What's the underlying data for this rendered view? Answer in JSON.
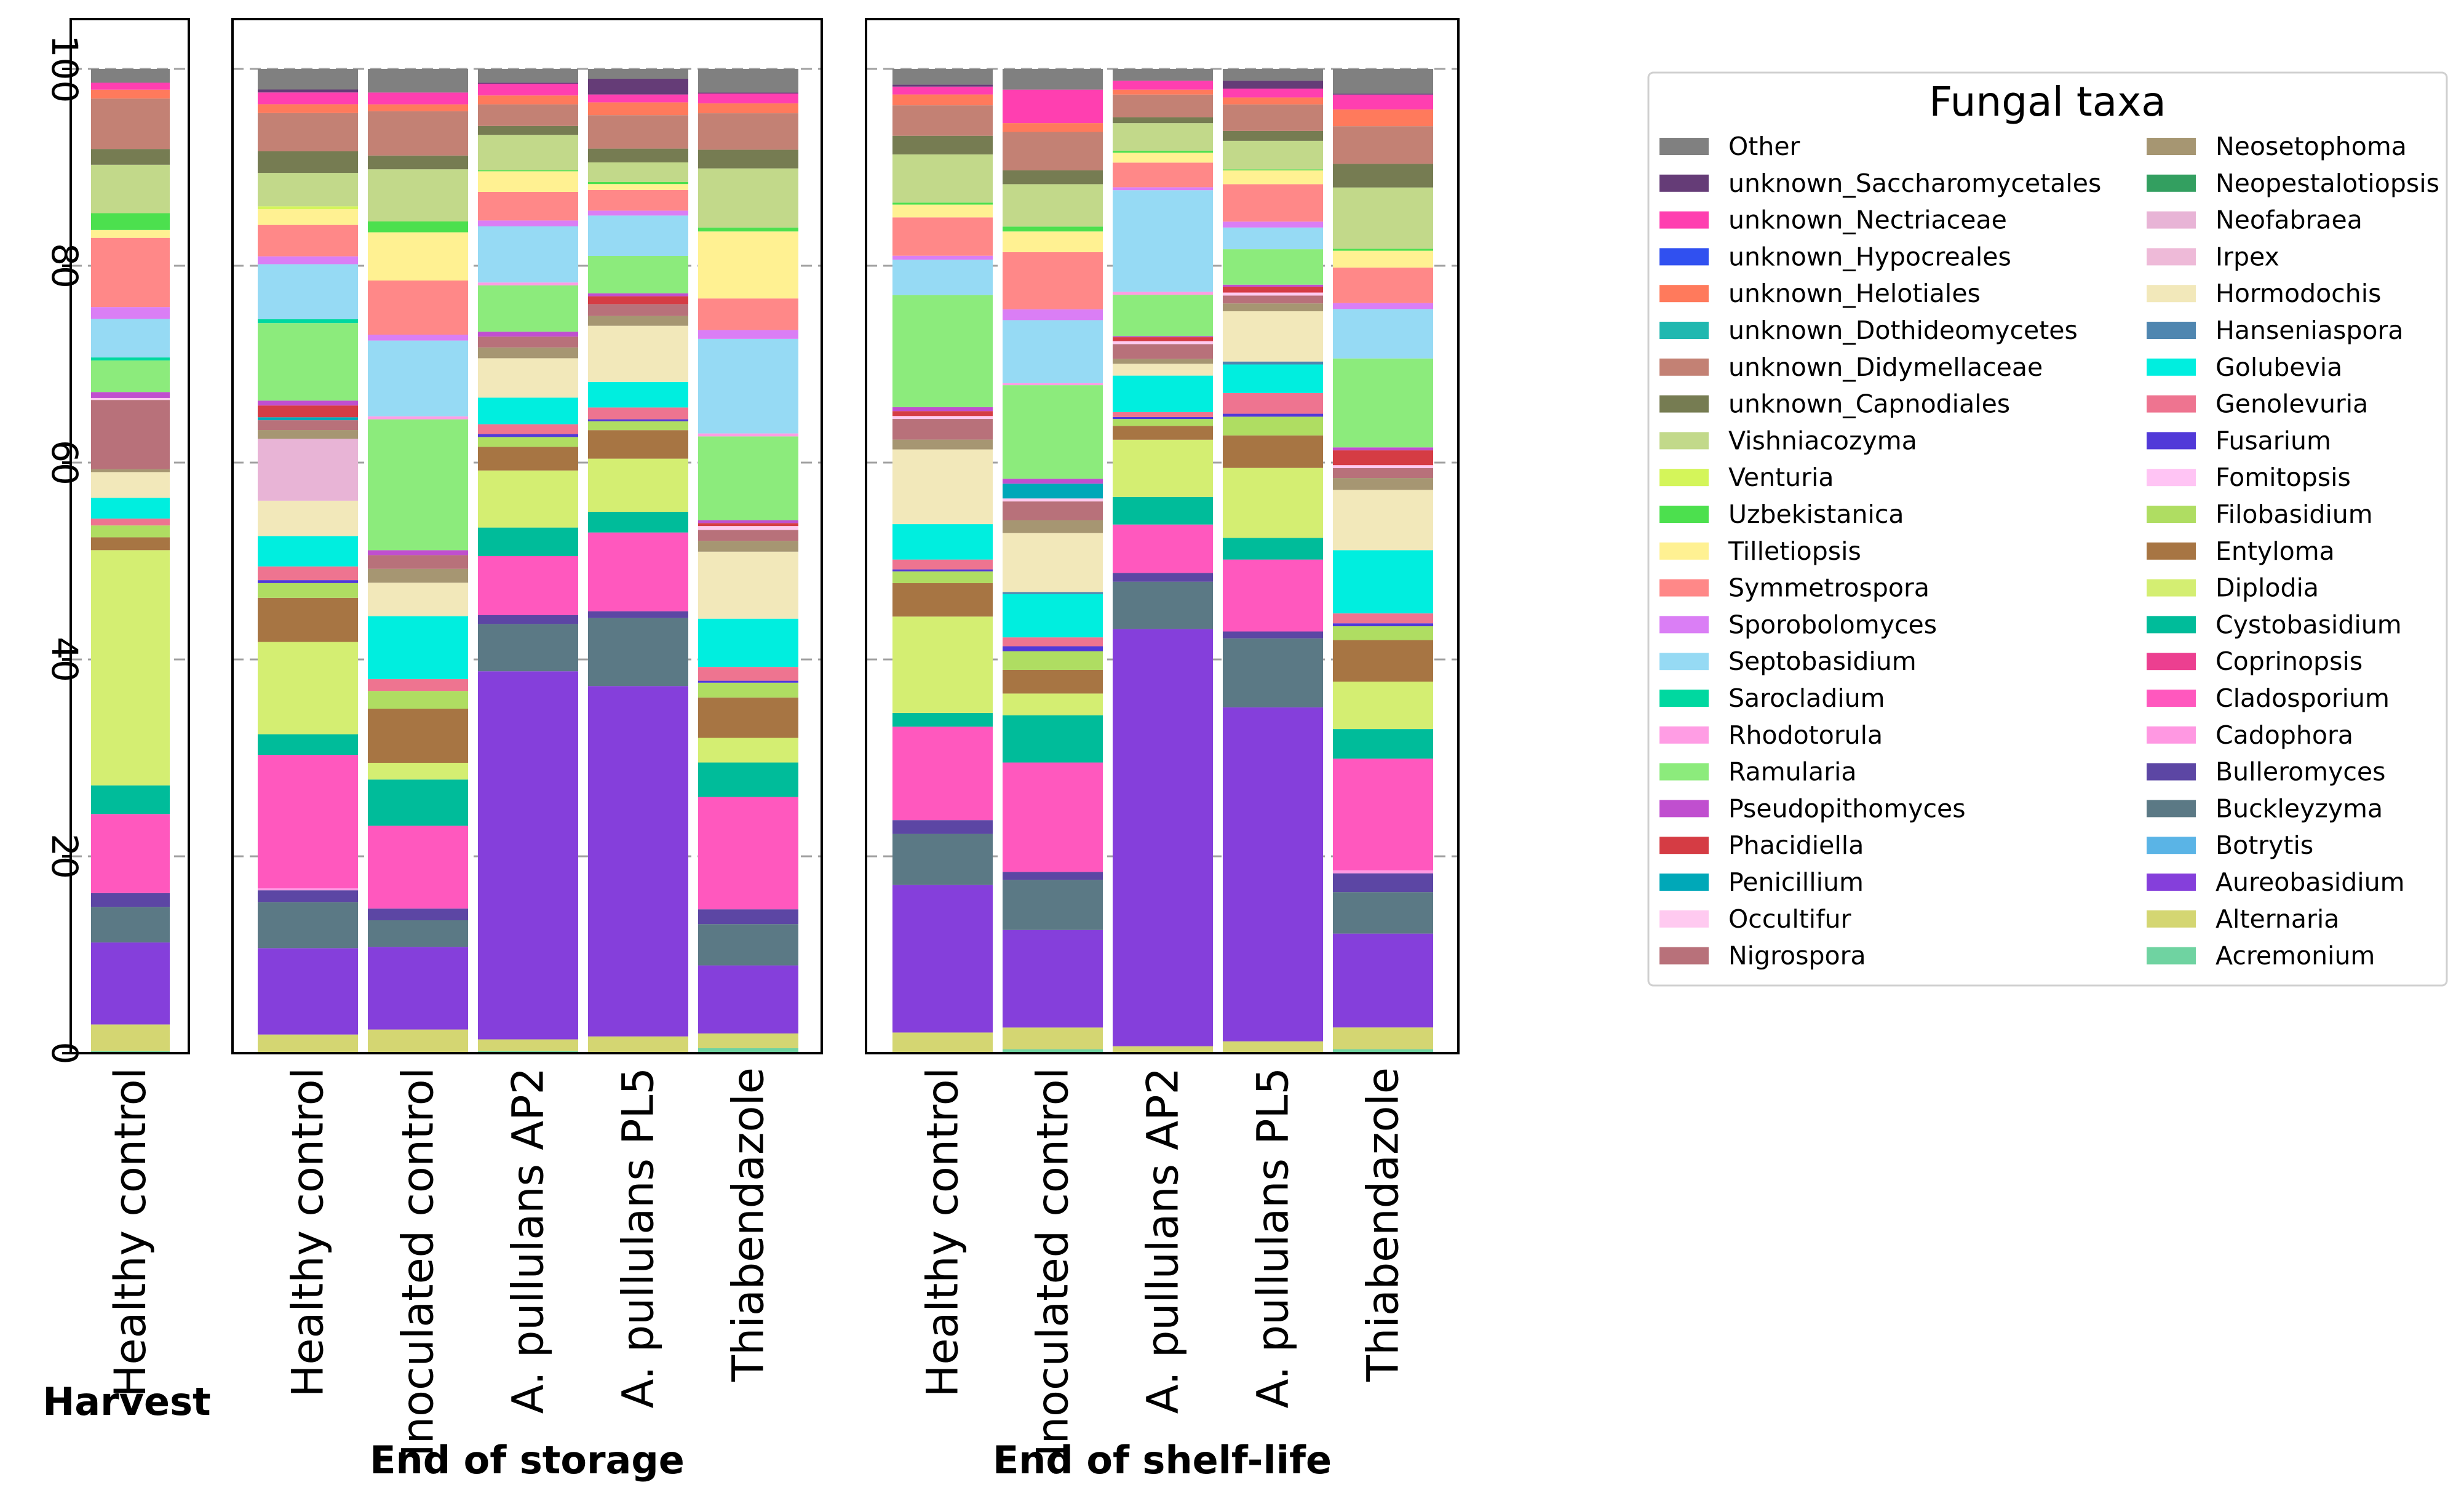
{
  "chart_data": {
    "type": "bar",
    "stacked": true,
    "ylim": [
      0,
      100
    ],
    "yticks": [
      "0",
      "20",
      "40",
      "60",
      "80",
      "100"
    ],
    "grid": true,
    "legend": {
      "title": "Fungal taxa",
      "placement": "right"
    },
    "taxa": [
      {
        "name": "Other",
        "color": "#808080"
      },
      {
        "name": "unknown_Saccharomycetales",
        "color": "#653c77"
      },
      {
        "name": "unknown_Nectriaceae",
        "color": "#ff3fb0"
      },
      {
        "name": "unknown_Hypocreales",
        "color": "#3050f0"
      },
      {
        "name": "unknown_Helotiales",
        "color": "#ff7a5c"
      },
      {
        "name": "unknown_Dothideomycetes",
        "color": "#20b8b0"
      },
      {
        "name": "unknown_Didymellaceae",
        "color": "#c38174"
      },
      {
        "name": "unknown_Capnodiales",
        "color": "#767c52"
      },
      {
        "name": "Vishniacozyma",
        "color": "#c2d98a"
      },
      {
        "name": "Venturia",
        "color": "#d4f55a"
      },
      {
        "name": "Uzbekistanica",
        "color": "#4ce04e"
      },
      {
        "name": "Tilletiopsis",
        "color": "#fff192"
      },
      {
        "name": "Symmetrospora",
        "color": "#ff8888"
      },
      {
        "name": "Sporobolomyces",
        "color": "#da7ef5"
      },
      {
        "name": "Septobasidium",
        "color": "#96daf4"
      },
      {
        "name": "Sarocladium",
        "color": "#00d8a0"
      },
      {
        "name": "Rhodotorula",
        "color": "#ff9de4"
      },
      {
        "name": "Ramularia",
        "color": "#8ceb7c"
      },
      {
        "name": "Pseudopithomyces",
        "color": "#c04fcf"
      },
      {
        "name": "Phacidiella",
        "color": "#d53c44"
      },
      {
        "name": "Penicillium",
        "color": "#00a8b8"
      },
      {
        "name": "Occultifur",
        "color": "#ffcaf0"
      },
      {
        "name": "Nigrospora",
        "color": "#b8717a"
      },
      {
        "name": "Neosetophoma",
        "color": "#a69672"
      },
      {
        "name": "Neopestalotiopsis",
        "color": "#339f60"
      },
      {
        "name": "Neofabraea",
        "color": "#e8b4d6"
      },
      {
        "name": "Irpex",
        "color": "#eebad8"
      },
      {
        "name": "Hormodochis",
        "color": "#f2e8ba"
      },
      {
        "name": "Hanseniaspora",
        "color": "#4f86b0"
      },
      {
        "name": "Golubevia",
        "color": "#00eedf"
      },
      {
        "name": "Genolevuria",
        "color": "#ee7490"
      },
      {
        "name": "Fusarium",
        "color": "#5139d8"
      },
      {
        "name": "Fomitopsis",
        "color": "#ffc4f4"
      },
      {
        "name": "Filobasidium",
        "color": "#afdd62"
      },
      {
        "name": "Entyloma",
        "color": "#a77543"
      },
      {
        "name": "Diplodia",
        "color": "#d4ee72"
      },
      {
        "name": "Cystobasidium",
        "color": "#00bc9a"
      },
      {
        "name": "Coprinopsis",
        "color": "#ec3f90"
      },
      {
        "name": "Cladosporium",
        "color": "#ff58be"
      },
      {
        "name": "Cadophora",
        "color": "#ff98e2"
      },
      {
        "name": "Bulleromyces",
        "color": "#5c46a4"
      },
      {
        "name": "Buckleyzyma",
        "color": "#5b7985"
      },
      {
        "name": "Botrytis",
        "color": "#5ab4e6"
      },
      {
        "name": "Aureobasidium",
        "color": "#853fdb"
      },
      {
        "name": "Alternaria",
        "color": "#d4d672"
      },
      {
        "name": "Acremonium",
        "color": "#6fd3a1"
      }
    ],
    "groups": [
      {
        "label": "Harvest",
        "bars": [
          {
            "label": "Healthy control",
            "values": {
              "Acremonium": 0.2,
              "Alternaria": 2.7,
              "Aureobasidium": 8.3,
              "Buckleyzyma": 3.6,
              "Bulleromyces": 1.4,
              "Cladosporium": 8.0,
              "Cystobasidium": 2.9,
              "Diplodia": 23.8,
              "Entyloma": 1.3,
              "Filobasidium": 1.2,
              "Genolevuria": 0.7,
              "Golubevia": 2.1,
              "Hormodochis": 2.6,
              "Neosetophoma": 0.3,
              "Nigrospora": 7.0,
              "Occultifur": 0.2,
              "Pseudopithomyces": 0.6,
              "Ramularia": 3.2,
              "Sarocladium": 0.3,
              "Septobasidium": 3.9,
              "Sporobolomyces": 1.2,
              "Symmetrospora": 7.0,
              "Tilletiopsis": 0.8,
              "Uzbekistanica": 1.7,
              "Vishniacozyma": 4.9,
              "unknown_Capnodiales": 1.6,
              "unknown_Didymellaceae": 5.1,
              "unknown_Helotiales": 0.9,
              "unknown_Nectriaceae": 0.7,
              "Other": 1.4
            }
          }
        ]
      },
      {
        "label": "End of storage",
        "bars": [
          {
            "label": "Healthy control",
            "values": {
              "Alternaria": 1.9,
              "Aureobasidium": 8.8,
              "Buckleyzyma": 4.7,
              "Bulleromyces": 1.2,
              "Cadophora": 0.2,
              "Cladosporium": 13.6,
              "Cystobasidium": 2.1,
              "Diplodia": 9.4,
              "Entyloma": 4.5,
              "Filobasidium": 1.5,
              "Fusarium": 0.3,
              "Genolevuria": 1.4,
              "Golubevia": 3.1,
              "Hormodochis": 3.6,
              "Neofabraea": 6.3,
              "Neosetophoma": 0.9,
              "Nigrospora": 1.0,
              "Penicillium": 0.3,
              "Phacidiella": 1.2,
              "Pseudopithomyces": 0.5,
              "Ramularia": 7.9,
              "Sarocladium": 0.4,
              "Septobasidium": 5.6,
              "Sporobolomyces": 0.8,
              "Symmetrospora": 3.2,
              "Tilletiopsis": 1.6,
              "Venturia": 0.3,
              "Vishniacozyma": 3.4,
              "unknown_Capnodiales": 2.2,
              "unknown_Didymellaceae": 3.9,
              "unknown_Helotiales": 0.9,
              "unknown_Nectriaceae": 1.2,
              "unknown_Saccharomycetales": 0.3,
              "Other": 2.1
            }
          },
          {
            "label": "Inoculated control",
            "values": {
              "Alternaria": 2.4,
              "Aureobasidium": 8.4,
              "Buckleyzyma": 2.7,
              "Bulleromyces": 1.2,
              "Cladosporium": 8.4,
              "Cystobasidium": 4.7,
              "Diplodia": 1.7,
              "Entyloma": 5.5,
              "Filobasidium": 1.8,
              "Genolevuria": 1.2,
              "Golubevia": 6.4,
              "Hormodochis": 3.4,
              "Neosetophoma": 1.4,
              "Nigrospora": 1.4,
              "Pseudopithomyces": 0.5,
              "Ramularia": 13.3,
              "Rhodotorula": 0.3,
              "Septobasidium": 7.7,
              "Sporobolomyces": 0.6,
              "Symmetrospora": 5.5,
              "Tilletiopsis": 4.9,
              "Uzbekistanica": 1.1,
              "Vishniacozyma": 5.3,
              "unknown_Capnodiales": 1.4,
              "unknown_Didymellaceae": 4.5,
              "unknown_Helotiales": 0.7,
              "unknown_Nectriaceae": 1.2,
              "Other": 2.4
            }
          },
          {
            "label": "A. pullulans AP2",
            "values": {
              "Acremonium": 0.2,
              "Alternaria": 1.2,
              "Aureobasidium": 37.4,
              "Buckleyzyma": 4.8,
              "Bulleromyces": 0.9,
              "Cladosporium": 6.0,
              "Cystobasidium": 2.9,
              "Diplodia": 5.8,
              "Entyloma": 2.4,
              "Filobasidium": 1.0,
              "Fusarium": 0.3,
              "Genolevuria": 1.0,
              "Golubevia": 2.7,
              "Hormodochis": 4.0,
              "Neosetophoma": 1.1,
              "Nigrospora": 1.1,
              "Pseudopithomyces": 0.5,
              "Ramularia": 4.7,
              "Rhodotorula": 0.3,
              "Septobasidium": 5.7,
              "Sporobolomyces": 0.6,
              "Symmetrospora": 2.9,
              "Tilletiopsis": 2.1,
              "Uzbekistanica": 0.1,
              "Vishniacozyma": 3.6,
              "unknown_Capnodiales": 0.9,
              "unknown_Didymellaceae": 2.2,
              "unknown_Helotiales": 0.9,
              "unknown_Nectriaceae": 1.2,
              "unknown_Saccharomycetales": 0.1,
              "Other": 1.4
            }
          },
          {
            "label": "A. pullulans PL5",
            "values": {
              "Alternaria": 1.7,
              "Aureobasidium": 35.6,
              "Buckleyzyma": 6.9,
              "Bulleromyces": 0.7,
              "Cladosporium": 8.0,
              "Cystobasidium": 2.1,
              "Diplodia": 5.4,
              "Entyloma": 2.9,
              "Filobasidium": 0.9,
              "Fusarium": 0.2,
              "Genolevuria": 1.2,
              "Golubevia": 2.6,
              "Hormodochis": 5.7,
              "Neosetophoma": 1.0,
              "Nigrospora": 1.2,
              "Phacidiella": 0.8,
              "Pseudopithomyces": 0.3,
              "Ramularia": 3.8,
              "Septobasidium": 4.1,
              "Sporobolomyces": 0.5,
              "Symmetrospora": 2.1,
              "Tilletiopsis": 0.6,
              "Uzbekistanica": 0.2,
              "Vishniacozyma": 2.0,
              "unknown_Capnodiales": 1.4,
              "unknown_Didymellaceae": 3.4,
              "unknown_Helotiales": 1.3,
              "unknown_Nectriaceae": 0.8,
              "unknown_Saccharomycetales": 1.6,
              "Other": 1.0
            }
          },
          {
            "label": "Thiabendazole",
            "values": {
              "Acremonium": 0.5,
              "Alternaria": 1.5,
              "Aureobasidium": 6.9,
              "Buckleyzyma": 4.2,
              "Bulleromyces": 1.5,
              "Cladosporium": 11.4,
              "Cystobasidium": 3.5,
              "Diplodia": 2.5,
              "Entyloma": 4.1,
              "Filobasidium": 1.5,
              "Fusarium": 0.2,
              "Genolevuria": 1.4,
              "Golubevia": 4.9,
              "Hormodochis": 6.8,
              "Neosetophoma": 1.1,
              "Nigrospora": 1.1,
              "Occultifur": 0.4,
              "Phacidiella": 0.3,
              "Pseudopithomyces": 0.3,
              "Ramularia": 8.5,
              "Rhodotorula": 0.3,
              "Septobasidium": 9.6,
              "Sporobolomyces": 0.9,
              "Symmetrospora": 3.2,
              "Tilletiopsis": 6.8,
              "Uzbekistanica": 0.4,
              "Vishniacozyma": 6.0,
              "unknown_Capnodiales": 1.9,
              "unknown_Didymellaceae": 3.7,
              "unknown_Helotiales": 1.0,
              "unknown_Nectriaceae": 1.0,
              "unknown_Saccharomycetales": 0.1,
              "Other": 2.4
            }
          }
        ]
      },
      {
        "label": "End of shelf-life",
        "bars": [
          {
            "label": "Healthy control",
            "values": {
              "Alternaria": 2.1,
              "Aureobasidium": 15.0,
              "Buckleyzyma": 5.2,
              "Bulleromyces": 1.4,
              "Cladosporium": 9.5,
              "Cystobasidium": 1.4,
              "Diplodia": 9.8,
              "Entyloma": 3.4,
              "Filobasidium": 1.2,
              "Fusarium": 0.2,
              "Genolevuria": 1.0,
              "Golubevia": 3.6,
              "Hormodochis": 7.6,
              "Neosetophoma": 1.0,
              "Nigrospora": 2.1,
              "Occultifur": 0.3,
              "Phacidiella": 0.5,
              "Pseudopithomyces": 0.4,
              "Ramularia": 11.4,
              "Septobasidium": 3.6,
              "Sporobolomyces": 0.4,
              "Symmetrospora": 3.9,
              "Tilletiopsis": 1.3,
              "Uzbekistanica": 0.2,
              "Vishniacozyma": 4.9,
              "unknown_Capnodiales": 1.9,
              "unknown_Didymellaceae": 3.1,
              "unknown_Helotiales": 1.1,
              "unknown_Nectriaceae": 0.8,
              "unknown_Saccharomycetales": 0.2,
              "Other": 1.6
            }
          },
          {
            "label": "Inoculated control",
            "values": {
              "Acremonium": 0.4,
              "Alternaria": 2.2,
              "Aureobasidium": 9.9,
              "Buckleyzyma": 5.1,
              "Bulleromyces": 0.8,
              "Cladosporium": 11.1,
              "Cystobasidium": 4.8,
              "Diplodia": 2.2,
              "Entyloma": 2.4,
              "Filobasidium": 1.9,
              "Fusarium": 0.5,
              "Genolevuria": 0.9,
              "Golubevia": 4.4,
              "Hanseniaspora": 0.2,
              "Hormodochis": 6.0,
              "Neosetophoma": 1.3,
              "Nigrospora": 1.9,
              "Occultifur": 0.3,
              "Penicillium": 1.5,
              "Pseudopithomyces": 0.5,
              "Ramularia": 9.5,
              "Rhodotorula": 0.2,
              "Septobasidium": 6.4,
              "Sporobolomyces": 1.1,
              "Symmetrospora": 5.8,
              "Tilletiopsis": 2.1,
              "Uzbekistanica": 0.5,
              "Vishniacozyma": 4.3,
              "unknown_Capnodiales": 1.4,
              "unknown_Didymellaceae": 3.9,
              "unknown_Helotiales": 0.9,
              "unknown_Nectriaceae": 3.4,
              "Other": 2.1
            }
          },
          {
            "label": "A. pullulans AP2",
            "values": {
              "Alternaria": 0.7,
              "Aureobasidium": 42.3,
              "Buckleyzyma": 4.8,
              "Bulleromyces": 0.9,
              "Cladosporium": 4.9,
              "Cystobasidium": 2.8,
              "Diplodia": 5.8,
              "Entyloma": 1.4,
              "Filobasidium": 0.7,
              "Fusarium": 0.2,
              "Genolevuria": 0.5,
              "Golubevia": 3.7,
              "Hormodochis": 1.2,
              "Neosetophoma": 0.5,
              "Nigrospora": 1.5,
              "Occultifur": 0.3,
              "Phacidiella": 0.4,
              "Pseudopithomyces": 0.1,
              "Ramularia": 4.2,
              "Rhodotorula": 0.3,
              "Septobasidium": 10.3,
              "Sporobolomyces": 0.3,
              "Symmetrospora": 2.5,
              "Tilletiopsis": 1.0,
              "Uzbekistanica": 0.2,
              "Vishniacozyma": 2.8,
              "unknown_Capnodiales": 0.6,
              "unknown_Didymellaceae": 2.3,
              "unknown_Helotiales": 0.5,
              "unknown_Nectriaceae": 0.9,
              "Other": 1.2
            }
          },
          {
            "label": "A. pullulans PL5",
            "values": {
              "Alternaria": 1.2,
              "Aureobasidium": 33.9,
              "Buckleyzyma": 7.0,
              "Bulleromyces": 0.7,
              "Cladosporium": 7.3,
              "Cystobasidium": 2.2,
              "Diplodia": 7.1,
              "Entyloma": 3.3,
              "Filobasidium": 1.9,
              "Fusarium": 0.3,
              "Genolevuria": 2.1,
              "Golubevia": 2.9,
              "Hanseniaspora": 0.3,
              "Hormodochis": 5.1,
              "Neosetophoma": 0.8,
              "Nigrospora": 0.8,
              "Occultifur": 0.3,
              "Phacidiella": 0.6,
              "Pseudopithomyces": 0.2,
              "Ramularia": 3.6,
              "Septobasidium": 2.2,
              "Sporobolomyces": 0.6,
              "Symmetrospora": 3.8,
              "Tilletiopsis": 1.4,
              "Uzbekistanica": 0.1,
              "Vishniacozyma": 2.9,
              "unknown_Capnodiales": 1.0,
              "unknown_Didymellaceae": 2.7,
              "unknown_Helotiales": 0.7,
              "unknown_Nectriaceae": 0.9,
              "unknown_Saccharomycetales": 0.8,
              "Other": 1.2
            }
          },
          {
            "label": "Thiabendazole",
            "values": {
              "Acremonium": 0.4,
              "Alternaria": 2.2,
              "Aureobasidium": 9.5,
              "Buckleyzyma": 4.2,
              "Bulleromyces": 1.9,
              "Cadophora": 0.3,
              "Cladosporium": 11.3,
              "Cystobasidium": 3.0,
              "Diplodia": 4.8,
              "Entyloma": 4.2,
              "Filobasidium": 1.4,
              "Fusarium": 0.3,
              "Genolevuria": 1.0,
              "Golubevia": 6.4,
              "Hormodochis": 6.1,
              "Neosetophoma": 1.2,
              "Nigrospora": 1.0,
              "Occultifur": 0.3,
              "Phacidiella": 1.5,
              "Pseudopithomyces": 0.3,
              "Ramularia": 9.0,
              "Septobasidium": 5.0,
              "Sporobolomyces": 0.6,
              "Symmetrospora": 3.6,
              "Tilletiopsis": 1.7,
              "Uzbekistanica": 0.2,
              "Vishniacozyma": 6.2,
              "unknown_Capnodiales": 2.4,
              "unknown_Didymellaceae": 3.8,
              "unknown_Helotiales": 1.7,
              "unknown_Nectriaceae": 1.5,
              "unknown_Saccharomycetales": 0.1,
              "Other": 2.5
            }
          }
        ]
      }
    ]
  }
}
